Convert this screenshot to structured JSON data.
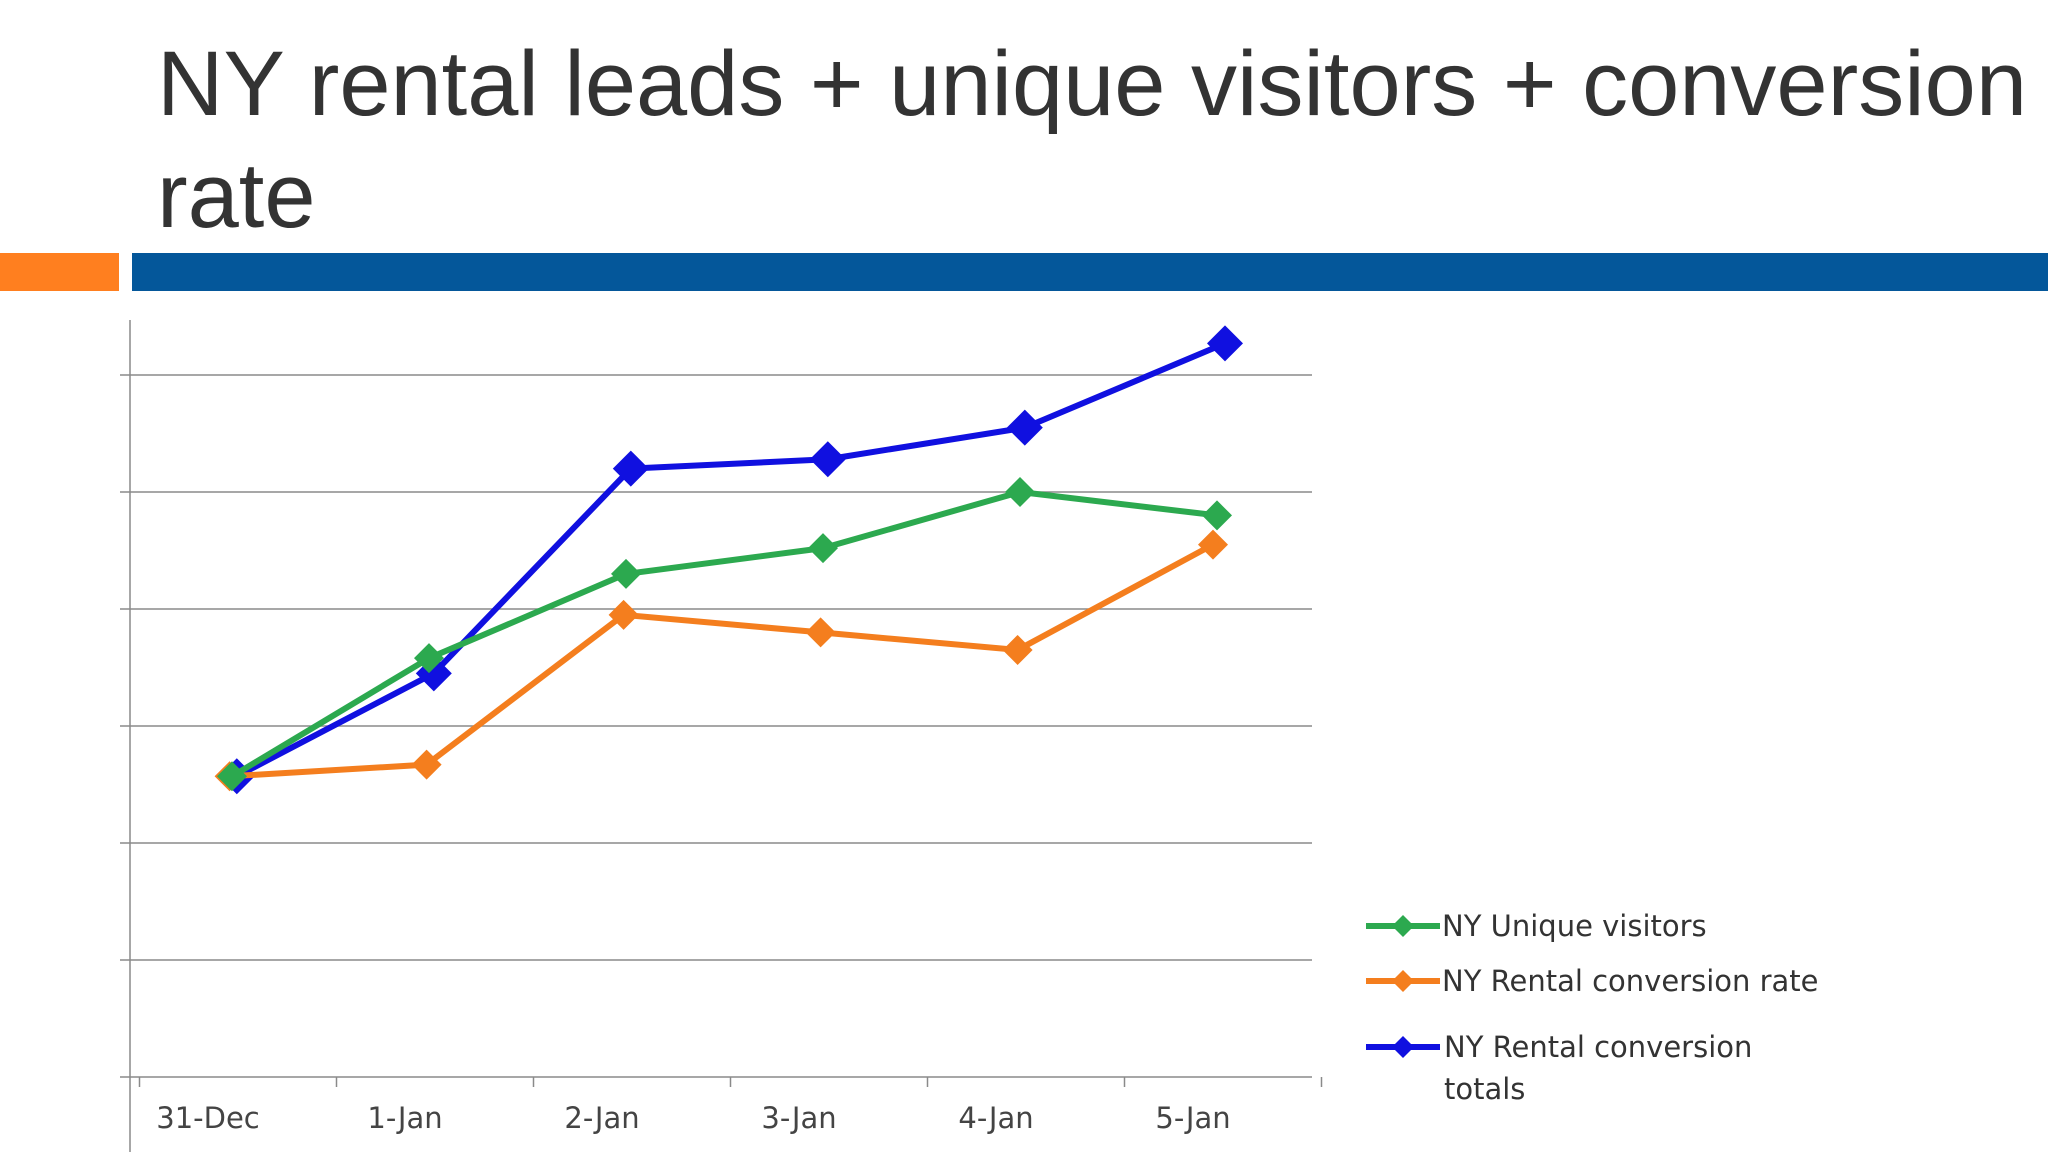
{
  "slide": {
    "title": "NY rental leads + unique visitors + conversion rate"
  },
  "colors": {
    "accent_orange": "#ff7f1f",
    "accent_blue": "#04579a",
    "green_series": "#2ca94f",
    "orange_series": "#f47e1e",
    "blue_series": "#1010e0"
  },
  "chart_data": {
    "type": "line",
    "title": "",
    "xlabel": "",
    "ylabel": "",
    "categories": [
      "31-Dec",
      "1-Jan",
      "2-Jan",
      "3-Jan",
      "4-Jan",
      "5-Jan"
    ],
    "y_tick_labels_visible": false,
    "gridlines": 6,
    "ylim": [
      0,
      6
    ],
    "grid": true,
    "legend": "right",
    "series": [
      {
        "name": "NY Unique visitors",
        "color": "#2ca94f",
        "marker": "diamond",
        "values": [
          2.57,
          3.58,
          4.3,
          4.52,
          5.0,
          4.8
        ]
      },
      {
        "name": "NY Rental conversion rate",
        "color": "#f47e1e",
        "marker": "diamond",
        "values": [
          2.57,
          2.67,
          3.95,
          3.8,
          3.65,
          4.55
        ]
      },
      {
        "name": "NY Rental conversion totals",
        "color": "#1010e0",
        "marker": "diamond",
        "values": [
          2.57,
          3.45,
          5.2,
          5.28,
          5.55,
          6.27
        ]
      }
    ]
  }
}
